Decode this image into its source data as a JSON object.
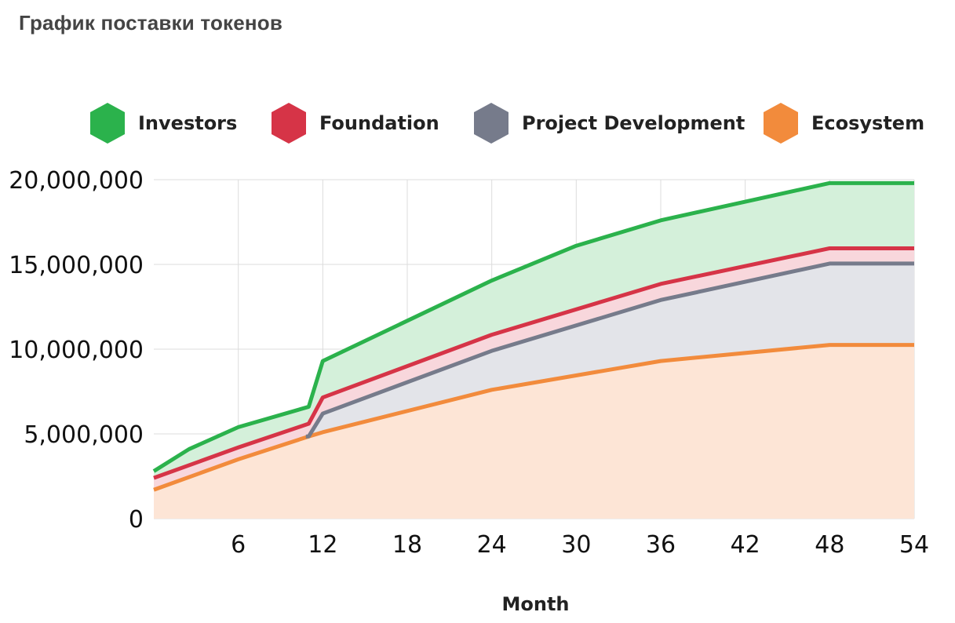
{
  "page": {
    "title": "График поставки токенов"
  },
  "legend": [
    {
      "label": "Investors",
      "color": "#2bb24c",
      "icon": "hexagon-icon"
    },
    {
      "label": "Foundation",
      "color": "#d63447",
      "icon": "hexagon-icon"
    },
    {
      "label": "Project Development",
      "color": "#767b8b",
      "icon": "hexagon-icon"
    },
    {
      "label": "Ecosystem",
      "color": "#f28b3c",
      "icon": "hexagon-icon"
    }
  ],
  "chart_data": {
    "type": "area",
    "stacked": true,
    "xlabel": "Month",
    "ylabel": "",
    "xlim": [
      0,
      54
    ],
    "ylim": [
      0,
      20000000
    ],
    "xticks": [
      6,
      12,
      18,
      24,
      30,
      36,
      42,
      48,
      54
    ],
    "yticks": [
      0,
      5000000,
      10000000,
      15000000,
      20000000
    ],
    "ytick_labels": [
      "0",
      "5,000,000",
      "10,000,000",
      "15,000,000",
      "20,000,000"
    ],
    "grid": true,
    "legend_position": "top",
    "series": [
      {
        "name": "Ecosystem",
        "color": "#f28b3c",
        "fill": "#fde5d6",
        "points": [
          [
            0,
            1700000
          ],
          [
            6,
            3500000
          ],
          [
            11,
            4850000
          ],
          [
            12,
            5100000
          ],
          [
            24,
            7600000
          ],
          [
            36,
            9300000
          ],
          [
            48,
            10250000
          ],
          [
            54,
            10250000
          ]
        ]
      },
      {
        "name": "Project Development",
        "color": "#767b8b",
        "fill": "#e3e4e9",
        "points": [
          [
            10.8,
            4850000
          ],
          [
            11,
            4850000
          ],
          [
            12,
            6200000
          ],
          [
            24,
            9900000
          ],
          [
            36,
            12900000
          ],
          [
            48,
            15050000
          ],
          [
            54,
            15050000
          ]
        ]
      },
      {
        "name": "Foundation",
        "color": "#d63447",
        "fill": "#f8d7dc",
        "points": [
          [
            0,
            2400000
          ],
          [
            6,
            4200000
          ],
          [
            11,
            5600000
          ],
          [
            12,
            7150000
          ],
          [
            24,
            10850000
          ],
          [
            36,
            13850000
          ],
          [
            48,
            15950000
          ],
          [
            54,
            15950000
          ]
        ]
      },
      {
        "name": "Investors",
        "color": "#2bb24c",
        "fill": "#d4f0da",
        "points": [
          [
            0,
            2800000
          ],
          [
            2.5,
            4100000
          ],
          [
            6,
            5400000
          ],
          [
            11,
            6600000
          ],
          [
            12,
            9300000
          ],
          [
            24,
            14050000
          ],
          [
            30,
            16100000
          ],
          [
            36,
            17600000
          ],
          [
            48,
            19800000
          ],
          [
            54,
            19800000
          ]
        ]
      }
    ]
  }
}
